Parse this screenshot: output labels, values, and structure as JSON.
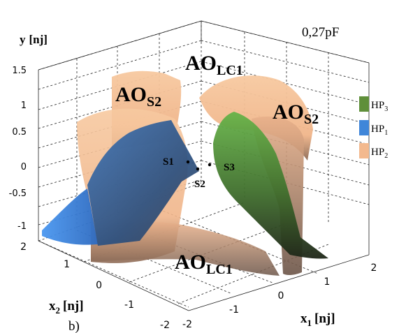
{
  "panel_label": "b)",
  "capacitance_label": "0,27pF",
  "y_axis": {
    "label_main": "y",
    "label_unit": "[nj]",
    "ticks": [
      "1.5",
      "1",
      "0.5",
      "0",
      "-0.5",
      "-1"
    ]
  },
  "x1_axis": {
    "label_main": "x",
    "label_sub": "1",
    "label_unit": "[nj]",
    "ticks": [
      "-2",
      "-1",
      "0",
      "1",
      "2"
    ]
  },
  "x2_axis": {
    "label_main": "x",
    "label_sub": "2",
    "label_unit": "[nj]",
    "ticks": [
      "2",
      "1",
      "0",
      "-1",
      "-2"
    ]
  },
  "regions": {
    "ao_lc1_top": {
      "main": "AO",
      "sub": "LC1"
    },
    "ao_s2_left": {
      "main": "AO",
      "sub": "S2"
    },
    "ao_s2_right": {
      "main": "AO",
      "sub": "S2"
    },
    "ao_lc1_bottom": {
      "main": "AO",
      "sub": "LC1"
    }
  },
  "points": {
    "s1": "S1",
    "s2": "S2",
    "s3": "S3"
  },
  "legend": [
    {
      "main": "HP",
      "sub": "3",
      "color": "#5f8f3a"
    },
    {
      "main": "HP",
      "sub": "1",
      "color": "#3f86d9"
    },
    {
      "main": "HP",
      "sub": "2",
      "color": "#f3b98e"
    }
  ],
  "colors": {
    "surface_orange": "#f0b98a",
    "surface_blue": "#2f6fc0",
    "surface_green": "#4f8f33"
  }
}
